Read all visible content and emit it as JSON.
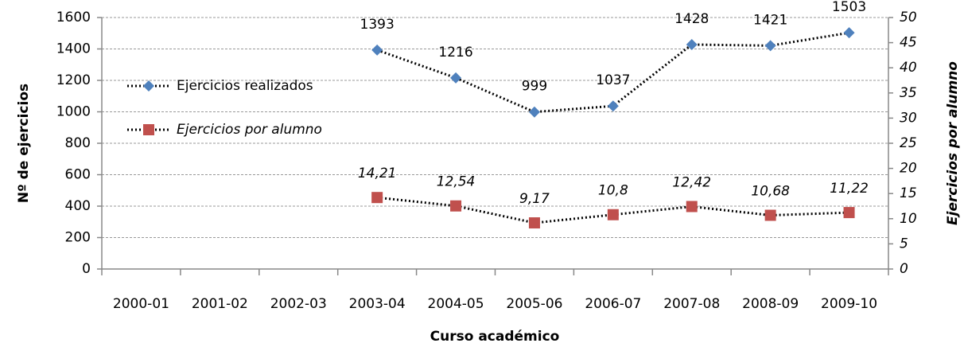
{
  "chart_data": {
    "type": "line",
    "categories": [
      "2000-01",
      "2001-02",
      "2002-03",
      "2003-04",
      "2004-05",
      "2005-06",
      "2006-07",
      "2007-08",
      "2008-09",
      "2009-10"
    ],
    "series": [
      {
        "name": "Ejercicios realizados",
        "color": "#4f81bd",
        "marker": "diamond",
        "values": [
          null,
          null,
          null,
          1393,
          1216,
          999,
          1037,
          1428,
          1421,
          1503
        ]
      },
      {
        "name": "Ejercicios por alumno",
        "color": "#c0504d",
        "marker": "square",
        "axis": "y2",
        "values": [
          null,
          null,
          null,
          14.21,
          12.54,
          9.17,
          10.8,
          12.42,
          10.68,
          11.22
        ],
        "value_labels": [
          null,
          null,
          null,
          "14,21",
          "12,54",
          "9,17",
          "10,8",
          "12,42",
          "10,68",
          "11,22"
        ]
      }
    ],
    "ylim": [
      0,
      1600
    ],
    "yticks": [
      0,
      200,
      400,
      600,
      800,
      1000,
      1200,
      1400,
      1600
    ],
    "y2lim": [
      0,
      50
    ],
    "y2ticks": [
      0,
      5,
      10,
      15,
      20,
      25,
      30,
      35,
      40,
      45,
      50
    ],
    "y_label": "Nº de ejercicios",
    "y2_label": "Ejercicios por alumno",
    "x_label": "Curso académico",
    "grid": true,
    "legend": "left"
  }
}
